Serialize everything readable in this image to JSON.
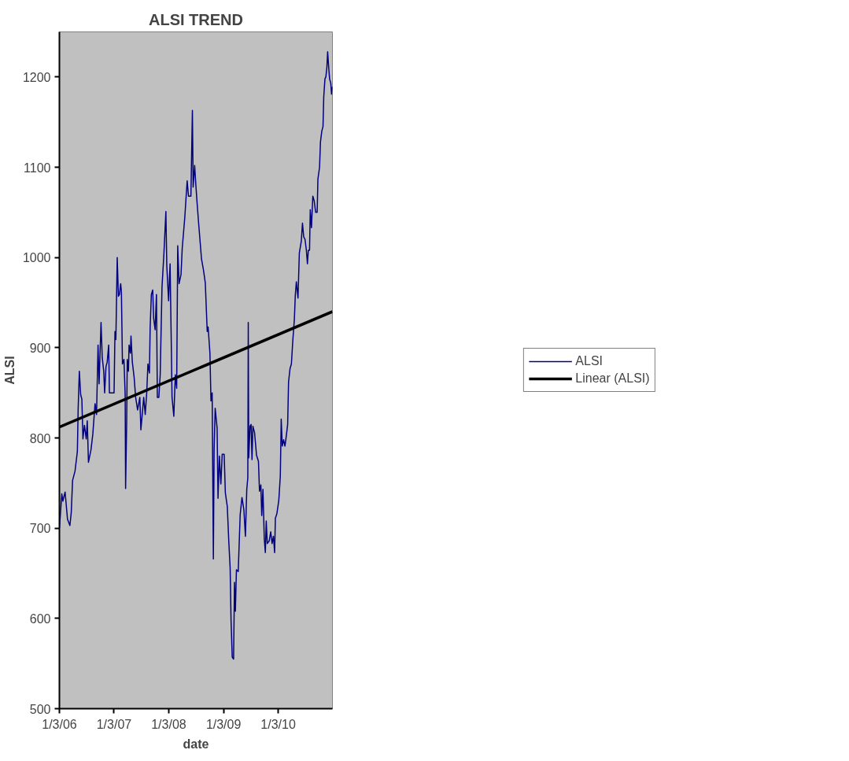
{
  "chart_data": {
    "type": "line",
    "title": "ALSI TREND",
    "xlabel": "date",
    "ylabel": "ALSI",
    "xlim": [
      "2006-01-03",
      "2010-12-31"
    ],
    "xticks": [
      {
        "value": "2006-01-03",
        "label": "1/3/06"
      },
      {
        "value": "2007-01-03",
        "label": "1/3/07"
      },
      {
        "value": "2008-01-03",
        "label": "1/3/08"
      },
      {
        "value": "2009-01-03",
        "label": "1/3/09"
      },
      {
        "value": "2010-01-03",
        "label": "1/3/10"
      }
    ],
    "ylim": [
      500,
      1250
    ],
    "yticks": [
      500,
      600,
      700,
      800,
      900,
      1000,
      1100,
      1200
    ],
    "grid": false,
    "legend": "right",
    "series": [
      {
        "name": "ALSI",
        "color": "#000080",
        "x": [
          "2006-01-03",
          "2006-01-19",
          "2006-01-26",
          "2006-02-10",
          "2006-02-26",
          "2006-03-14",
          "2006-03-23",
          "2006-04-01",
          "2006-04-17",
          "2006-05-03",
          "2006-05-08",
          "2006-05-16",
          "2006-05-25",
          "2006-06-02",
          "2006-06-09",
          "2006-06-19",
          "2006-07-01",
          "2006-07-08",
          "2006-07-16",
          "2006-08-02",
          "2006-08-14",
          "2006-08-29",
          "2006-09-08",
          "2006-09-18",
          "2006-09-25",
          "2006-10-08",
          "2006-10-16",
          "2006-10-26",
          "2006-11-01",
          "2006-11-10",
          "2006-11-18",
          "2006-11-28",
          "2006-12-03",
          "2007-01-03",
          "2007-01-09",
          "2007-01-15",
          "2007-01-24",
          "2007-02-01",
          "2007-02-08",
          "2007-02-16",
          "2007-02-21",
          "2007-02-28",
          "2007-03-10",
          "2007-03-18",
          "2007-03-21",
          "2007-03-28",
          "2007-04-01",
          "2007-04-09",
          "2007-04-13",
          "2007-04-22",
          "2007-04-26",
          "2007-05-05",
          "2007-05-17",
          "2007-05-27",
          "2007-06-09",
          "2007-06-24",
          "2007-07-01",
          "2007-07-10",
          "2007-07-20",
          "2007-07-30",
          "2007-08-09",
          "2007-08-17",
          "2007-08-27",
          "2007-09-01",
          "2007-09-09",
          "2007-09-18",
          "2007-09-24",
          "2007-10-04",
          "2007-10-13",
          "2007-10-19",
          "2007-10-29",
          "2007-11-07",
          "2007-11-19",
          "2007-12-02",
          "2007-12-15",
          "2007-12-21",
          "2008-01-02",
          "2008-01-12",
          "2008-01-21",
          "2008-01-25",
          "2008-02-06",
          "2008-02-16",
          "2008-02-25",
          "2008-03-03",
          "2008-03-12",
          "2008-03-25",
          "2008-04-02",
          "2008-04-19",
          "2008-05-05",
          "2008-05-14",
          "2008-05-30",
          "2008-06-09",
          "2008-06-14",
          "2008-06-24",
          "2008-07-03",
          "2008-07-11",
          "2008-07-21",
          "2008-08-09",
          "2008-08-22",
          "2008-09-03",
          "2008-09-16",
          "2008-09-22",
          "2008-10-04",
          "2008-10-11",
          "2008-10-19",
          "2008-10-27",
          "2008-11-01",
          "2008-11-08",
          "2008-11-21",
          "2008-11-27",
          "2008-12-06",
          "2008-12-16",
          "2008-12-25",
          "2009-01-07",
          "2009-01-15",
          "2009-01-28",
          "2009-02-07",
          "2009-02-16",
          "2009-02-22",
          "2009-03-02",
          "2009-03-11",
          "2009-03-17",
          "2009-03-23",
          "2009-03-30",
          "2009-04-11",
          "2009-04-24",
          "2009-05-06",
          "2009-05-19",
          "2009-05-29",
          "2009-06-07",
          "2009-06-14",
          "2009-06-17",
          "2009-06-20",
          "2009-06-29",
          "2009-07-06",
          "2009-07-12",
          "2009-07-18",
          "2009-07-29",
          "2009-08-11",
          "2009-08-24",
          "2009-08-31",
          "2009-09-09",
          "2009-09-15",
          "2009-09-23",
          "2009-10-02",
          "2009-10-09",
          "2009-10-15",
          "2009-10-22",
          "2009-11-04",
          "2009-11-14",
          "2009-11-23",
          "2009-12-02",
          "2009-12-10",
          "2009-12-15",
          "2009-12-25",
          "2010-01-07",
          "2010-01-17",
          "2010-01-23",
          "2010-01-30",
          "2010-02-08",
          "2010-02-17",
          "2010-02-25",
          "2010-03-07",
          "2010-03-13",
          "2010-03-23",
          "2010-04-01",
          "2010-04-10",
          "2010-04-21",
          "2010-04-27",
          "2010-05-04",
          "2010-05-15",
          "2010-05-24",
          "2010-06-06",
          "2010-06-14",
          "2010-06-22",
          "2010-07-01",
          "2010-07-10",
          "2010-07-17",
          "2010-07-23",
          "2010-07-31",
          "2010-08-05",
          "2010-08-13",
          "2010-08-22",
          "2010-08-31",
          "2010-09-10",
          "2010-09-20",
          "2010-09-25",
          "2010-10-06",
          "2010-10-12",
          "2010-10-21",
          "2010-10-29",
          "2010-11-03",
          "2010-11-11",
          "2010-11-17",
          "2010-11-24",
          "2010-11-29",
          "2010-12-05",
          "2010-12-12",
          "2010-12-20",
          "2010-12-25",
          "2010-12-31"
        ],
        "values": [
          700,
          738,
          730,
          740,
          710,
          703,
          717,
          753,
          763,
          785,
          831,
          874,
          848,
          843,
          799,
          814,
          799,
          819,
          773,
          787,
          804,
          838,
          826,
          903,
          860,
          928,
          889,
          874,
          850,
          879,
          884,
          903,
          850,
          850,
          918,
          909,
          1000,
          957,
          959,
          971,
          962,
          882,
          887,
          848,
          744,
          816,
          887,
          874,
          903,
          894,
          913,
          884,
          867,
          845,
          831,
          845,
          809,
          826,
          845,
          826,
          850,
          882,
          872,
          923,
          959,
          964,
          933,
          920,
          959,
          845,
          845,
          870,
          967,
          1005,
          1051,
          991,
          952,
          993,
          894,
          845,
          824,
          870,
          855,
          1013,
          971,
          981,
          1010,
          1044,
          1085,
          1068,
          1068,
          1163,
          1078,
          1102,
          1078,
          1059,
          1037,
          998,
          986,
          972,
          918,
          923,
          894,
          841,
          850,
          666,
          787,
          833,
          811,
          733,
          780,
          749,
          782,
          782,
          739,
          724,
          685,
          656,
          598,
          557,
          555,
          640,
          608,
          654,
          652,
          715,
          734,
          720,
          691,
          743,
          756,
          928,
          778,
          813,
          815,
          776,
          813,
          806,
          781,
          774,
          741,
          748,
          714,
          743,
          688,
          673,
          708,
          683,
          686,
          696,
          683,
          691,
          673,
          711,
          716,
          731,
          758,
          821,
          791,
          798,
          791,
          801,
          815,
          862,
          877,
          882,
          907,
          932,
          958,
          973,
          955,
          1005,
          1018,
          1038,
          1023,
          1020,
          1008,
          993,
          1008,
          1008,
          1053,
          1033,
          1068,
          1063,
          1050,
          1050,
          1087,
          1100,
          1128,
          1140,
          1145,
          1178,
          1198,
          1200,
          1211,
          1228,
          1213,
          1198,
          1193,
          1181,
          1189
        ]
      },
      {
        "name": "Linear (ALSI)",
        "color": "#000000",
        "x": [
          "2006-01-03",
          "2010-12-31"
        ],
        "values": [
          812,
          940
        ]
      }
    ]
  }
}
